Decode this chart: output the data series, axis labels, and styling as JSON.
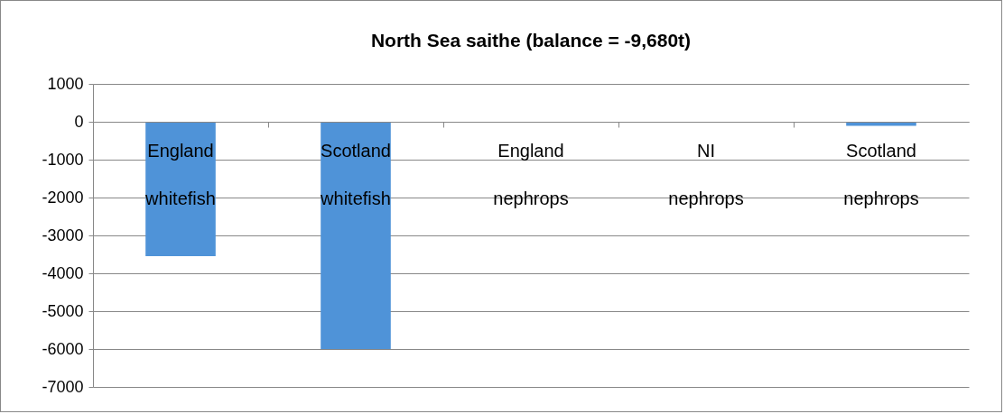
{
  "chart_data": {
    "type": "bar",
    "title": "North Sea saithe (balance = -9,680t)",
    "categories": [
      "England whitefish",
      "Scotland whitefish",
      "England nephrops",
      "NI nephrops",
      "Scotland nephrops"
    ],
    "values": [
      -3550,
      -6000,
      -10,
      -10,
      -110
    ],
    "color": "#4f93d8",
    "ylim": [
      -7000,
      1000
    ],
    "yticks": [
      -7000,
      -6000,
      -5000,
      -4000,
      -3000,
      -2000,
      -1000,
      0,
      1000
    ],
    "grid": "y"
  }
}
